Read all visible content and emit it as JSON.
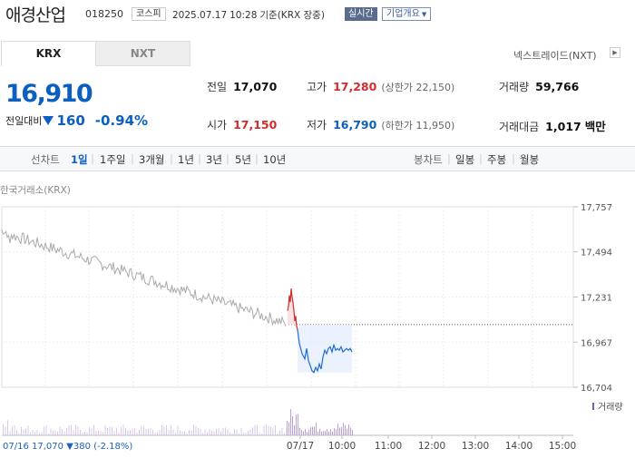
{
  "header": {
    "stock_name": "애경산업",
    "stock_code": "018250",
    "market_badge": "코스피",
    "date": "2025.07.17",
    "time": "10:28",
    "basis": "기준(KRX 장중)",
    "live_badge": "실시간",
    "company_btn": "기업개요"
  },
  "tabs": {
    "krx": "KRX",
    "nxt": "NXT"
  },
  "nxt_link": "넥스트레이드(NXT)",
  "price": {
    "current": "16,910",
    "change_label": "전일대비",
    "change": "160",
    "change_pct": "-0.94%"
  },
  "stats": {
    "prev_label": "전일",
    "prev": "17,070",
    "high_label": "고가",
    "high": "17,280",
    "upper_limit": "(상한가 22,150)",
    "volume_label": "거래량",
    "volume": "59,766",
    "open_label": "시가",
    "open": "17,150",
    "low_label": "저가",
    "low": "16,790",
    "lower_limit": "(하한가 11,950)",
    "amount_label": "거래대금",
    "amount": "1,017",
    "amount_unit": "백만"
  },
  "period": {
    "line_label": "선차트",
    "line_opts": [
      "1일",
      "1주일",
      "3개월",
      "1년",
      "3년",
      "5년",
      "10년"
    ],
    "candle_label": "봉차트",
    "candle_opts": [
      "일봉",
      "주봉",
      "월봉"
    ]
  },
  "chart_source": "한국거래소(KRX)",
  "chart_data": {
    "type": "line",
    "y_ticks": [
      "17,757",
      "17,494",
      "17,231",
      "16,967",
      "16,704"
    ],
    "ylim": [
      16704,
      17757
    ],
    "previous_close": 17070,
    "x_ticks": [
      "07/17",
      "10:00",
      "11:00",
      "12:00",
      "13:00",
      "14:00",
      "15:00"
    ],
    "legend": "거래량",
    "footer": "07/16 17,070 ▼380 (-2.18%)",
    "colors": {
      "prev_day": "#aaaaaa",
      "up": "#d42b2b",
      "down": "#1e6ad8",
      "fill_up": "#fbe2e2",
      "fill_down": "#dde9fb"
    }
  }
}
